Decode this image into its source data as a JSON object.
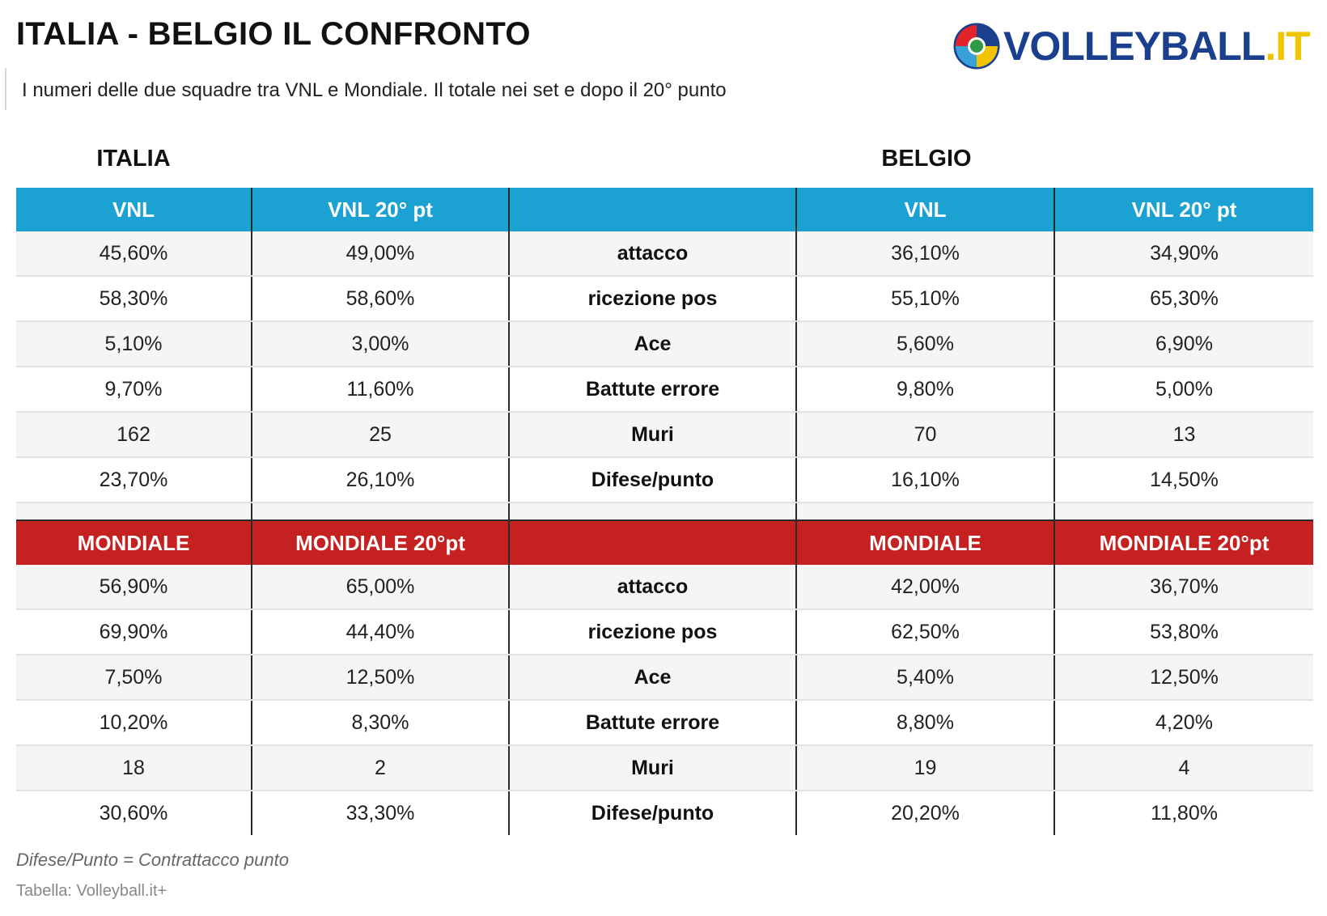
{
  "title": "ITALIA - BELGIO IL CONFRONTO",
  "subtitle": "I numeri delle due squadre tra VNL e Mondiale. Il totale nei set  e dopo il 20° punto",
  "logo": {
    "text": "VOLLEYBALL",
    "dot": ".",
    "suffix": "IT",
    "icon": "volleyball-icon"
  },
  "teams": {
    "left": "ITALIA",
    "right": "BELGIO"
  },
  "colors": {
    "vnl_header": "#1ba2d2",
    "mondiale_header": "#c52121",
    "logo_blue": "#1b3f8f",
    "logo_yellow": "#f2c400"
  },
  "vnl": {
    "headers": [
      "VNL",
      "VNL 20° pt",
      "",
      "VNL",
      "VNL 20° pt"
    ],
    "rows": [
      [
        "45,60%",
        "49,00%",
        "attacco",
        "36,10%",
        "34,90%"
      ],
      [
        "58,30%",
        "58,60%",
        "ricezione pos",
        "55,10%",
        "65,30%"
      ],
      [
        "5,10%",
        "3,00%",
        "Ace",
        "5,60%",
        "6,90%"
      ],
      [
        "9,70%",
        "11,60%",
        "Battute errore",
        "9,80%",
        "5,00%"
      ],
      [
        "162",
        "25",
        "Muri",
        "70",
        "13"
      ],
      [
        "23,70%",
        "26,10%",
        "Difese/punto",
        "16,10%",
        "14,50%"
      ]
    ]
  },
  "mondiale": {
    "headers": [
      "MONDIALE",
      "MONDIALE 20°pt",
      "",
      "MONDIALE",
      "MONDIALE 20°pt"
    ],
    "rows": [
      [
        "56,90%",
        "65,00%",
        "attacco",
        "42,00%",
        "36,70%"
      ],
      [
        "69,90%",
        "44,40%",
        "ricezione pos",
        "62,50%",
        "53,80%"
      ],
      [
        "7,50%",
        "12,50%",
        "Ace",
        "5,40%",
        "12,50%"
      ],
      [
        "10,20%",
        "8,30%",
        "Battute errore",
        "8,80%",
        "4,20%"
      ],
      [
        "18",
        "2",
        "Muri",
        "19",
        "4"
      ],
      [
        "30,60%",
        "33,30%",
        "Difese/punto",
        "20,20%",
        "11,80%"
      ]
    ]
  },
  "footnote": "Difese/Punto = Contrattacco punto",
  "source": "Tabella: Volleyball.it+"
}
